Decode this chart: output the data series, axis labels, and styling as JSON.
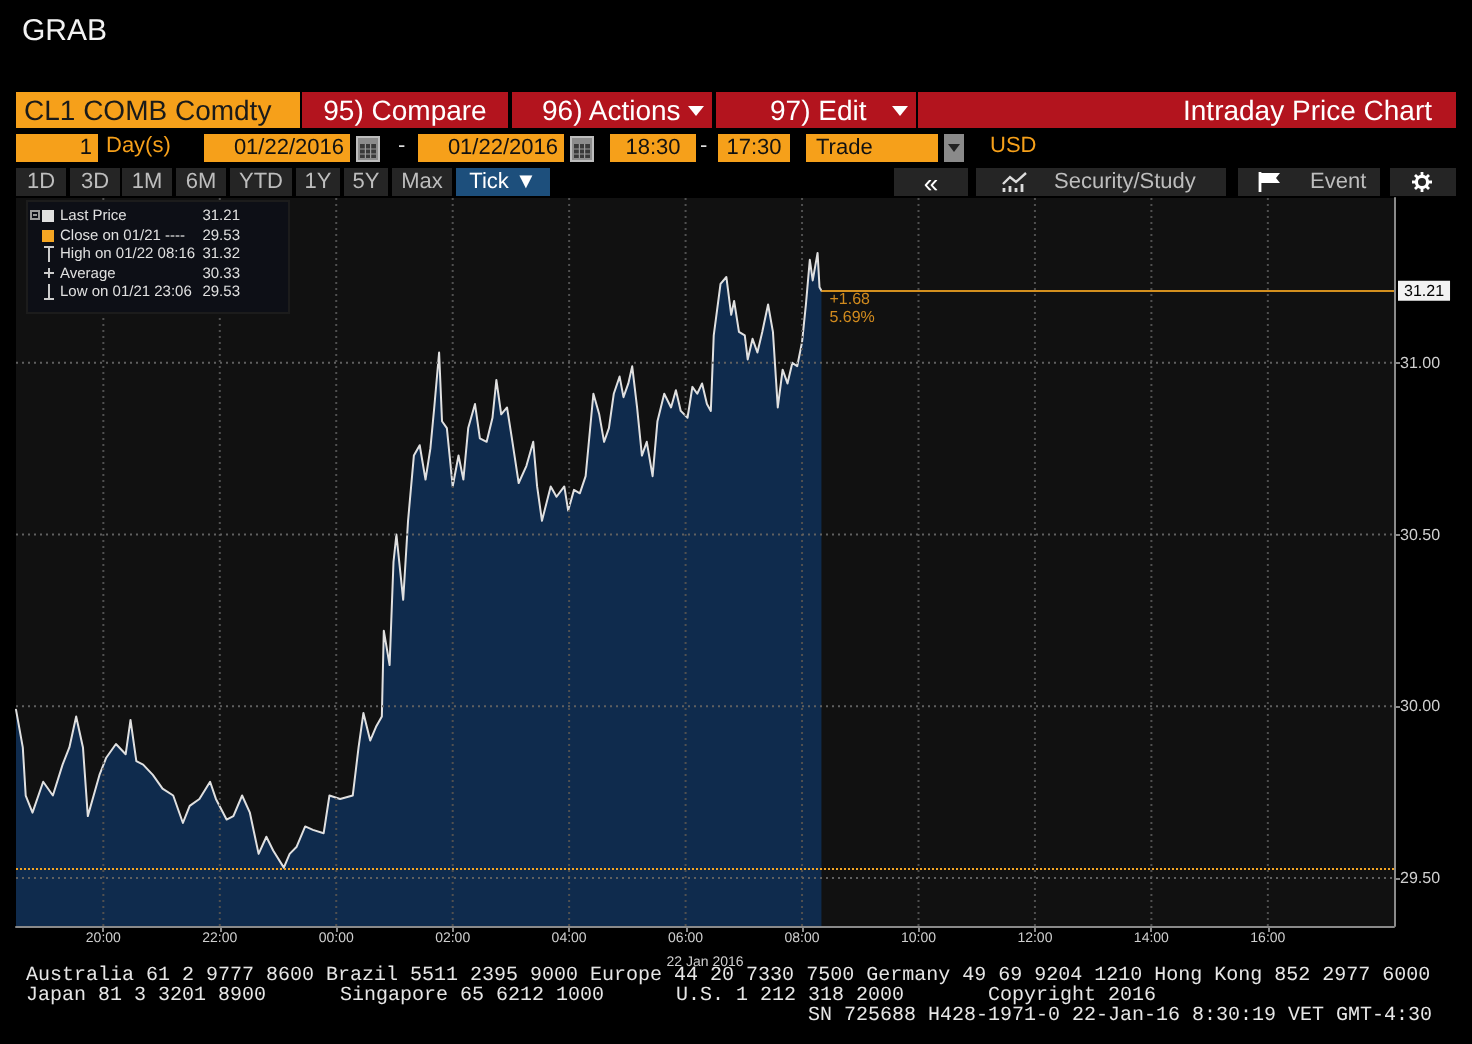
{
  "chart_data": {
    "type": "area",
    "title": "CL1 COMB Comdty",
    "subtitle": "Intraday Price Chart",
    "xlabel": "22 Jan 2016",
    "annotations": [
      "GRAB",
      "95) Compare",
      "96) Actions",
      "97) Edit",
      "1",
      "Day(s)",
      "01/22/2016",
      "-",
      "01/22/2016",
      "18:30",
      "-",
      "17:30",
      "Trade",
      "USD",
      "1D",
      "3D",
      "1M",
      "6M",
      "YTD",
      "1Y",
      "5Y",
      "Max",
      "Tick ▼",
      "«",
      "Security/Study",
      "Event",
      "Australia 61 2 9777 8600 Brazil 5511 2395 9000 Europe 44 20 7330 7500 Germany 49 69 9204 1210 Hong Kong 852 2977 6000",
      "Japan 81 3 3201 8900",
      "Singapore 65 6212 1000",
      "U.S. 1 212 318 2000",
      "Copyright 2016",
      "SN 725688 H428-1971-0 22-Jan-16 8:30:19 VET GMT-4:30",
      "31.21",
      "Close on 01/21 ----",
      "29.53",
      "High on 01/22 08:16",
      "31.32",
      "Average",
      "30.33",
      "Low on 01/21 23:06",
      "29.53",
      {
        "text": "+1.68",
        "x": "2016-01-22T08:20",
        "y": 31.21
      },
      {
        "text": "5.69%",
        "x": "2016-01-22T08:20",
        "y": 31.21
      }
    ],
    "x": [
      "2016-01-21T18:30",
      "2016-01-21T18:37",
      "2016-01-21T18:40",
      "2016-01-21T18:47",
      "2016-01-21T18:58",
      "2016-01-21T19:08",
      "2016-01-21T19:18",
      "2016-01-21T19:25",
      "2016-01-21T19:32",
      "2016-01-21T19:39",
      "2016-01-21T19:44",
      "2016-01-21T19:49",
      "2016-01-21T19:56",
      "2016-01-21T20:03",
      "2016-01-21T20:13",
      "2016-01-21T20:23",
      "2016-01-21T20:28",
      "2016-01-21T20:34",
      "2016-01-21T20:41",
      "2016-01-21T20:51",
      "2016-01-21T21:01",
      "2016-01-21T21:12",
      "2016-01-21T21:22",
      "2016-01-21T21:29",
      "2016-01-21T21:39",
      "2016-01-21T21:50",
      "2016-01-21T21:56",
      "2016-01-21T22:07",
      "2016-01-21T22:14",
      "2016-01-21T22:23",
      "2016-01-21T22:31",
      "2016-01-21T22:40",
      "2016-01-21T22:48",
      "2016-01-21T22:55",
      "2016-01-21T23:06",
      "2016-01-21T23:12",
      "2016-01-21T23:19",
      "2016-01-21T23:28",
      "2016-01-21T23:36",
      "2016-01-21T23:47",
      "2016-01-21T23:53",
      "2016-01-22T00:04",
      "2016-01-22T00:17",
      "2016-01-22T00:23",
      "2016-01-22T00:28",
      "2016-01-22T00:35",
      "2016-01-22T00:41",
      "2016-01-22T00:47",
      "2016-01-22T00:49",
      "2016-01-22T00:55",
      "2016-01-22T00:59",
      "2016-01-22T01:02",
      "2016-01-22T01:09",
      "2016-01-22T01:14",
      "2016-01-22T01:20",
      "2016-01-22T01:26",
      "2016-01-22T01:32",
      "2016-01-22T01:37",
      "2016-01-22T01:41",
      "2016-01-22T01:46",
      "2016-01-22T01:49",
      "2016-01-22T01:54",
      "2016-01-22T02:00",
      "2016-01-22T02:06",
      "2016-01-22T02:11",
      "2016-01-22T02:16",
      "2016-01-22T02:23",
      "2016-01-22T02:28",
      "2016-01-22T02:35",
      "2016-01-22T02:41",
      "2016-01-22T02:45",
      "2016-01-22T02:50",
      "2016-01-22T02:56",
      "2016-01-22T03:01",
      "2016-01-22T03:08",
      "2016-01-22T03:16",
      "2016-01-22T03:23",
      "2016-01-22T03:27",
      "2016-01-22T03:32",
      "2016-01-22T03:41",
      "2016-01-22T03:47",
      "2016-01-22T03:55",
      "2016-01-22T03:59",
      "2016-01-22T04:05",
      "2016-01-22T04:11",
      "2016-01-22T04:17",
      "2016-01-22T04:20",
      "2016-01-22T04:25",
      "2016-01-22T04:31",
      "2016-01-22T04:36",
      "2016-01-22T04:41",
      "2016-01-22T04:46",
      "2016-01-22T04:52",
      "2016-01-22T04:56",
      "2016-01-22T05:01",
      "2016-01-22T05:05",
      "2016-01-22T05:10",
      "2016-01-22T05:15",
      "2016-01-22T05:20",
      "2016-01-22T05:26",
      "2016-01-22T05:31",
      "2016-01-22T05:38",
      "2016-01-22T05:45",
      "2016-01-22T05:50",
      "2016-01-22T05:55",
      "2016-01-22T06:02",
      "2016-01-22T06:07",
      "2016-01-22T06:12",
      "2016-01-22T06:17",
      "2016-01-22T06:22",
      "2016-01-22T06:26",
      "2016-01-22T06:29",
      "2016-01-22T06:36",
      "2016-01-22T06:42",
      "2016-01-22T06:47",
      "2016-01-22T06:50",
      "2016-01-22T06:55",
      "2016-01-22T07:01",
      "2016-01-22T07:04",
      "2016-01-22T07:09",
      "2016-01-22T07:14",
      "2016-01-22T07:19",
      "2016-01-22T07:25",
      "2016-01-22T07:30",
      "2016-01-22T07:35",
      "2016-01-22T07:40",
      "2016-01-22T07:45",
      "2016-01-22T07:50",
      "2016-01-22T07:55",
      "2016-01-22T08:00",
      "2016-01-22T08:04",
      "2016-01-22T08:08",
      "2016-01-22T08:11",
      "2016-01-22T08:16",
      "2016-01-22T08:18",
      "2016-01-22T08:20"
    ],
    "series": [
      {
        "name": "Last Price",
        "color": "#e0e0e0",
        "values": [
          29.99,
          29.88,
          29.74,
          29.69,
          29.78,
          29.74,
          29.83,
          29.88,
          29.97,
          29.88,
          29.68,
          29.73,
          29.8,
          29.85,
          29.89,
          29.86,
          29.96,
          29.84,
          29.83,
          29.8,
          29.76,
          29.74,
          29.66,
          29.71,
          29.73,
          29.78,
          29.73,
          29.67,
          29.68,
          29.74,
          29.69,
          29.57,
          29.62,
          29.58,
          29.53,
          29.57,
          29.59,
          29.65,
          29.64,
          29.63,
          29.74,
          29.73,
          29.74,
          29.88,
          29.98,
          29.9,
          29.94,
          29.97,
          30.22,
          30.12,
          30.42,
          30.5,
          30.31,
          30.54,
          30.73,
          30.76,
          30.66,
          30.75,
          30.87,
          31.03,
          30.83,
          30.81,
          30.64,
          30.73,
          30.66,
          30.81,
          30.88,
          30.78,
          30.77,
          30.84,
          30.95,
          30.85,
          30.87,
          30.78,
          30.65,
          30.7,
          30.77,
          30.64,
          30.54,
          30.64,
          30.61,
          30.64,
          30.57,
          30.63,
          30.62,
          30.67,
          30.76,
          30.91,
          30.85,
          30.77,
          30.81,
          30.91,
          30.96,
          30.9,
          30.94,
          30.99,
          30.87,
          30.73,
          30.77,
          30.67,
          30.83,
          30.91,
          30.87,
          30.92,
          30.86,
          30.84,
          30.93,
          30.91,
          30.94,
          30.88,
          30.86,
          31.08,
          31.23,
          31.25,
          31.14,
          31.18,
          31.09,
          31.08,
          31.01,
          31.07,
          31.03,
          31.09,
          31.17,
          31.09,
          30.87,
          30.98,
          30.94,
          31.0,
          30.99,
          31.06,
          31.17,
          31.3,
          31.24,
          31.32,
          31.22,
          31.21
        ]
      }
    ],
    "xlim": [
      "2016-01-21T18:30",
      "2016-01-22T18:10"
    ],
    "xticks": [
      {
        "value": "2016-01-21T20:00",
        "label": "20:00"
      },
      {
        "value": "2016-01-21T22:00",
        "label": "22:00"
      },
      {
        "value": "2016-01-22T00:00",
        "label": "00:00"
      },
      {
        "value": "2016-01-22T02:00",
        "label": "02:00"
      },
      {
        "value": "2016-01-22T04:00",
        "label": "04:00"
      },
      {
        "value": "2016-01-22T06:00",
        "label": "06:00"
      },
      {
        "value": "2016-01-22T08:00",
        "label": "08:00"
      },
      {
        "value": "2016-01-22T10:00",
        "label": "10:00"
      },
      {
        "value": "2016-01-22T12:00",
        "label": "12:00"
      },
      {
        "value": "2016-01-22T14:00",
        "label": "14:00"
      },
      {
        "value": "2016-01-22T16:00",
        "label": "16:00"
      }
    ],
    "ylim": [
      29.36,
      31.48
    ],
    "yticks": [
      {
        "value": 29.5,
        "label": "29.50"
      },
      {
        "value": 30,
        "label": "30.00"
      },
      {
        "value": 30.5,
        "label": "30.50"
      },
      {
        "value": 31,
        "label": "31.00"
      }
    ],
    "ref_lines": [
      {
        "axis": "y",
        "value": 29.53,
        "color": "#f5a623",
        "line_style": "dotted"
      },
      {
        "axis": "y",
        "value": 31.21,
        "label": "31.21",
        "color": "#d4901f",
        "line_style": "solid"
      }
    ],
    "grid": true,
    "legend": "top left"
  }
}
